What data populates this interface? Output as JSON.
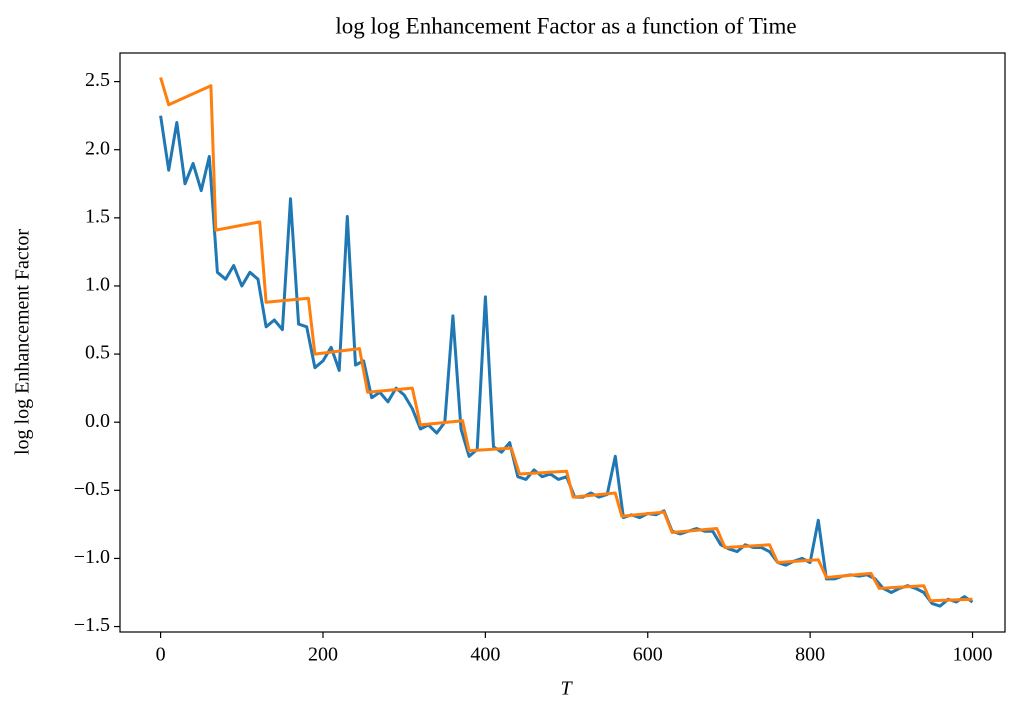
{
  "chart_data": {
    "type": "line",
    "title": "log log Enhancement Factor as a function of Time",
    "x_label": "T",
    "y_label": "log log Enhancement Factor",
    "xlim": [
      -50,
      1040
    ],
    "ylim": [
      -1.54,
      2.71
    ],
    "xticks": [
      0,
      200,
      400,
      600,
      800,
      1000
    ],
    "yticks": [
      {
        "value": -1.5,
        "label": "−1.5"
      },
      {
        "value": -1.0,
        "label": "−1.0"
      },
      {
        "value": -0.5,
        "label": "−0.5"
      },
      {
        "value": 0,
        "label": "0.0"
      },
      0.5,
      {
        "value": 1,
        "label": "1.0"
      },
      1.5,
      {
        "value": 2,
        "label": "2.0"
      },
      2.5
    ],
    "grid": false,
    "series": [
      {
        "color": "#1f77b4",
        "x": [
          0,
          10,
          20,
          30,
          40,
          50,
          60,
          70,
          80,
          90,
          100,
          110,
          120,
          130,
          140,
          150,
          160,
          170,
          180,
          190,
          200,
          210,
          220,
          230,
          240,
          250,
          260,
          270,
          280,
          290,
          300,
          310,
          320,
          330,
          340,
          350,
          360,
          370,
          380,
          390,
          400,
          410,
          420,
          430,
          440,
          450,
          460,
          470,
          480,
          490,
          500,
          510,
          520,
          530,
          540,
          550,
          560,
          570,
          580,
          590,
          600,
          610,
          620,
          630,
          640,
          650,
          660,
          670,
          680,
          690,
          700,
          710,
          720,
          730,
          740,
          750,
          760,
          770,
          780,
          790,
          800,
          810,
          820,
          830,
          840,
          850,
          860,
          870,
          880,
          890,
          900,
          910,
          920,
          930,
          940,
          950,
          960,
          970,
          980,
          990,
          1000
        ],
        "values": [
          2.25,
          1.85,
          2.2,
          1.75,
          1.9,
          1.7,
          1.95,
          1.1,
          1.05,
          1.15,
          1.0,
          1.1,
          1.05,
          0.7,
          0.75,
          0.68,
          1.64,
          0.72,
          0.7,
          0.4,
          0.45,
          0.55,
          0.38,
          1.51,
          0.42,
          0.45,
          0.18,
          0.22,
          0.15,
          0.25,
          0.2,
          0.1,
          -0.05,
          -0.02,
          -0.08,
          0.0,
          0.78,
          -0.05,
          -0.25,
          -0.2,
          0.92,
          -0.18,
          -0.22,
          -0.15,
          -0.4,
          -0.42,
          -0.35,
          -0.4,
          -0.38,
          -0.42,
          -0.4,
          -0.55,
          -0.55,
          -0.52,
          -0.55,
          -0.53,
          -0.25,
          -0.7,
          -0.68,
          -0.7,
          -0.67,
          -0.68,
          -0.65,
          -0.8,
          -0.82,
          -0.8,
          -0.78,
          -0.8,
          -0.8,
          -0.9,
          -0.93,
          -0.95,
          -0.9,
          -0.92,
          -0.92,
          -0.95,
          -1.03,
          -1.05,
          -1.02,
          -1.0,
          -1.03,
          -0.72,
          -1.15,
          -1.15,
          -1.13,
          -1.12,
          -1.13,
          -1.12,
          -1.15,
          -1.22,
          -1.25,
          -1.22,
          -1.2,
          -1.22,
          -1.25,
          -1.33,
          -1.35,
          -1.3,
          -1.32,
          -1.28,
          -1.32
        ]
      },
      {
        "color": "#ff7f0e",
        "x": [
          0,
          10,
          62,
          68,
          122,
          130,
          182,
          190,
          245,
          255,
          310,
          320,
          372,
          380,
          432,
          442,
          500,
          508,
          560,
          568,
          620,
          630,
          685,
          695,
          750,
          760,
          810,
          820,
          875,
          885,
          940,
          948,
          1000
        ],
        "values": [
          2.53,
          2.33,
          2.47,
          1.41,
          1.47,
          0.88,
          0.91,
          0.5,
          0.54,
          0.22,
          0.25,
          -0.02,
          0.01,
          -0.21,
          -0.19,
          -0.38,
          -0.36,
          -0.55,
          -0.52,
          -0.69,
          -0.66,
          -0.81,
          -0.78,
          -0.92,
          -0.9,
          -1.03,
          -1.01,
          -1.14,
          -1.11,
          -1.22,
          -1.2,
          -1.31,
          -1.3
        ]
      }
    ]
  }
}
